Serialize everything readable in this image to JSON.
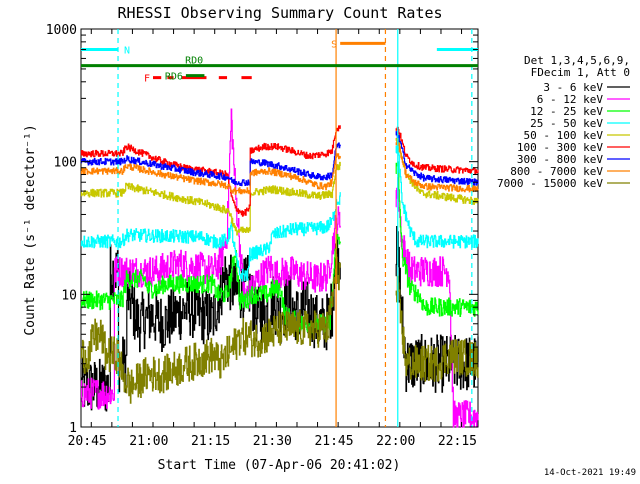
{
  "chart_data": {
    "type": "line",
    "title": "RHESSI Observing Summary Count Rates",
    "xlabel": "Start Time (07-Apr-06 20:41:02)",
    "ylabel": "Count Rate (s⁻¹ detector⁻¹)",
    "x_unit": "minutes after 20:41:02",
    "xlim": [
      2.5,
      99
    ],
    "ylim": [
      1,
      1000
    ],
    "yscale": "log",
    "x_tick_labels": [
      "20:45",
      "21:00",
      "21:15",
      "21:30",
      "21:45",
      "22:00",
      "22:15"
    ],
    "x_tick_positions": [
      4,
      19,
      34,
      49,
      64,
      79,
      94
    ],
    "y_tick_labels": [
      "1",
      "10",
      "100",
      "1000"
    ],
    "y_tick_values": [
      1,
      10,
      100,
      1000
    ],
    "legend_header": [
      "Det 1,3,4,5,6,9,",
      "FDecim 1, Att 0"
    ],
    "legend_position": "right",
    "timestamp": "14-Oct-2021 19:49",
    "intervals": [
      {
        "label": "N",
        "color": "#00ffff",
        "level": 700,
        "segments": [
          [
            2.5,
            11.5
          ],
          [
            89,
            99
          ]
        ]
      },
      {
        "label": "S",
        "color": "#ff8000",
        "level": 780,
        "segments": [
          [
            65.5,
            76.5
          ]
        ]
      },
      {
        "label": "F",
        "color": "#ff0000",
        "level": 430,
        "segments": [
          [
            20,
            22
          ],
          [
            23.5,
            25
          ],
          [
            27,
            33
          ],
          [
            36,
            38
          ],
          [
            41.5,
            44
          ]
        ]
      },
      {
        "label": "RD0",
        "color": "#008000",
        "level": 530,
        "segments": [
          [
            2.5,
            99
          ]
        ]
      },
      {
        "label": "RD6",
        "color": "#008000",
        "level": 445,
        "segments": [
          [
            28,
            32.5
          ]
        ]
      }
    ],
    "vlines": [
      {
        "x": 11.5,
        "color": "#00ffff",
        "style": "dashed"
      },
      {
        "x": 64.5,
        "color": "#ff8000",
        "style": "solid"
      },
      {
        "x": 76.5,
        "color": "#ff8000",
        "style": "dashed"
      },
      {
        "x": 79.5,
        "color": "#00ffff",
        "style": "solid"
      },
      {
        "x": 97.5,
        "color": "#00ffff",
        "style": "dashed"
      }
    ],
    "gaps": [
      [
        65.5,
        79
      ]
    ],
    "series": [
      {
        "name": "3 - 6 keV",
        "color": "#000000",
        "noise": 0.22,
        "points": [
          [
            2.5,
            2.0
          ],
          [
            9.5,
            2.0
          ],
          [
            9.6,
            15
          ],
          [
            11.5,
            15
          ],
          [
            11.6,
            3.0
          ],
          [
            13.5,
            3.0
          ],
          [
            13.6,
            10
          ],
          [
            14.5,
            9
          ],
          [
            15.5,
            7
          ],
          [
            16.5,
            6
          ],
          [
            19.5,
            7
          ],
          [
            22.5,
            6
          ],
          [
            25.5,
            7
          ],
          [
            28.5,
            8
          ],
          [
            31.5,
            7
          ],
          [
            34.5,
            6.5
          ],
          [
            37.5,
            14
          ],
          [
            40.5,
            10
          ],
          [
            43,
            12
          ],
          [
            45,
            7
          ],
          [
            47,
            7
          ],
          [
            49,
            9
          ],
          [
            51,
            7
          ],
          [
            53,
            9
          ],
          [
            55,
            7
          ],
          [
            57,
            8
          ],
          [
            60,
            6
          ],
          [
            62,
            6
          ],
          [
            63.5,
            8
          ],
          [
            64.5,
            20
          ],
          [
            79.5,
            20
          ],
          [
            80.5,
            7
          ],
          [
            81.5,
            3
          ],
          [
            82.5,
            3
          ],
          [
            99,
            3
          ]
        ]
      },
      {
        "name": "6 - 12 keV",
        "color": "#ff00ff",
        "noise": 0.12,
        "points": [
          [
            2.5,
            1.8
          ],
          [
            10.5,
            1.8
          ],
          [
            10.6,
            15
          ],
          [
            13.5,
            15
          ],
          [
            13.6,
            15
          ],
          [
            20.5,
            15
          ],
          [
            23.5,
            16
          ],
          [
            26.5,
            17
          ],
          [
            30.5,
            16
          ],
          [
            34.5,
            15
          ],
          [
            36.5,
            18
          ],
          [
            38,
            30
          ],
          [
            39,
            220
          ],
          [
            40,
            60
          ],
          [
            41,
            25
          ],
          [
            42,
            10
          ],
          [
            43.5,
            10
          ],
          [
            44.5,
            12
          ],
          [
            48.5,
            16
          ],
          [
            50,
            14
          ],
          [
            53,
            15
          ],
          [
            56,
            14
          ],
          [
            60,
            13
          ],
          [
            62.5,
            14
          ],
          [
            64.5,
            35
          ],
          [
            79.5,
            60
          ],
          [
            80.5,
            25
          ],
          [
            82.5,
            15
          ],
          [
            83.5,
            15
          ],
          [
            92,
            15
          ],
          [
            93,
            1.2
          ],
          [
            99,
            1.2
          ]
        ]
      },
      {
        "name": "12 - 25 keV",
        "color": "#00ff00",
        "noise": 0.07,
        "points": [
          [
            2.5,
            9
          ],
          [
            12.5,
            9
          ],
          [
            13.5,
            13
          ],
          [
            18,
            13
          ],
          [
            18.5,
            11
          ],
          [
            21.5,
            11
          ],
          [
            22.5,
            12
          ],
          [
            34.5,
            12
          ],
          [
            35.5,
            10
          ],
          [
            38,
            10
          ],
          [
            39,
            14
          ],
          [
            40,
            22
          ],
          [
            41,
            9
          ],
          [
            43,
            9
          ],
          [
            43.5,
            10
          ],
          [
            48,
            10
          ],
          [
            49,
            11
          ],
          [
            51,
            11
          ],
          [
            52,
            7
          ],
          [
            56,
            6
          ],
          [
            63,
            6
          ],
          [
            64.5,
            25
          ],
          [
            79.5,
            90
          ],
          [
            80.5,
            20
          ],
          [
            82.5,
            11
          ],
          [
            84.5,
            10
          ],
          [
            86,
            8
          ],
          [
            99,
            8
          ]
        ]
      },
      {
        "name": "25 - 50 keV",
        "color": "#00ffff",
        "noise": 0.05,
        "points": [
          [
            2.5,
            25
          ],
          [
            12.5,
            25
          ],
          [
            13.5,
            28
          ],
          [
            32,
            27
          ],
          [
            34.5,
            25
          ],
          [
            36.5,
            25
          ],
          [
            38,
            26
          ],
          [
            39,
            32
          ],
          [
            40,
            20
          ],
          [
            41,
            14
          ],
          [
            43,
            14
          ],
          [
            43.5,
            20
          ],
          [
            48,
            22
          ],
          [
            49,
            28
          ],
          [
            54,
            31
          ],
          [
            58,
            31
          ],
          [
            62,
            32
          ],
          [
            63.5,
            35
          ],
          [
            64.5,
            50
          ],
          [
            79.5,
            130
          ],
          [
            80.5,
            50
          ],
          [
            82.5,
            30
          ],
          [
            84,
            25
          ],
          [
            99,
            25
          ]
        ]
      },
      {
        "name": "50 - 100 keV",
        "color": "#c8c800",
        "noise": 0.03,
        "points": [
          [
            2.5,
            58
          ],
          [
            12.5,
            58
          ],
          [
            13.5,
            65
          ],
          [
            33,
            48
          ],
          [
            36,
            45
          ],
          [
            38.5,
            42
          ],
          [
            39,
            38
          ],
          [
            40,
            30
          ],
          [
            42,
            30
          ],
          [
            43.5,
            30
          ],
          [
            43.6,
            58
          ],
          [
            49,
            62
          ],
          [
            55,
            58
          ],
          [
            60,
            55
          ],
          [
            63.5,
            57
          ],
          [
            64.5,
            90
          ],
          [
            79.5,
            150
          ],
          [
            81.5,
            80
          ],
          [
            85,
            58
          ],
          [
            99,
            50
          ]
        ]
      },
      {
        "name": "100 - 300 keV",
        "color": "#ff0000",
        "noise": 0.025,
        "points": [
          [
            2.5,
            115
          ],
          [
            12.5,
            115
          ],
          [
            13.5,
            130
          ],
          [
            17.5,
            115
          ],
          [
            22.5,
            100
          ],
          [
            27.5,
            90
          ],
          [
            33,
            85
          ],
          [
            38,
            80
          ],
          [
            39,
            55
          ],
          [
            40,
            45
          ],
          [
            42,
            40
          ],
          [
            43.5,
            45
          ],
          [
            43.6,
            120
          ],
          [
            47,
            130
          ],
          [
            50,
            130
          ],
          [
            54,
            120
          ],
          [
            58,
            110
          ],
          [
            62,
            115
          ],
          [
            63.5,
            120
          ],
          [
            64.5,
            180
          ],
          [
            79.5,
            180
          ],
          [
            81.5,
            110
          ],
          [
            83.5,
            95
          ],
          [
            86,
            90
          ],
          [
            99,
            85
          ]
        ]
      },
      {
        "name": "300 - 800 keV",
        "color": "#0000ff",
        "noise": 0.025,
        "points": [
          [
            2.5,
            100
          ],
          [
            12.5,
            100
          ],
          [
            13.5,
            105
          ],
          [
            22.5,
            92
          ],
          [
            30,
            83
          ],
          [
            36,
            78
          ],
          [
            38.5,
            76
          ],
          [
            39,
            72
          ],
          [
            40,
            70
          ],
          [
            42,
            70
          ],
          [
            43.5,
            70
          ],
          [
            43.6,
            100
          ],
          [
            47,
            98
          ],
          [
            51,
            92
          ],
          [
            55,
            85
          ],
          [
            59,
            78
          ],
          [
            62,
            76
          ],
          [
            63.5,
            80
          ],
          [
            64.5,
            130
          ],
          [
            79.5,
            160
          ],
          [
            81.5,
            95
          ],
          [
            83.5,
            82
          ],
          [
            86,
            75
          ],
          [
            99,
            70
          ]
        ]
      },
      {
        "name": "800 - 7000 keV",
        "color": "#ff8000",
        "noise": 0.025,
        "points": [
          [
            2.5,
            85
          ],
          [
            12.5,
            85
          ],
          [
            13.5,
            93
          ],
          [
            22.5,
            80
          ],
          [
            30,
            72
          ],
          [
            36,
            68
          ],
          [
            38.5,
            65
          ],
          [
            39,
            62
          ],
          [
            40,
            60
          ],
          [
            42,
            60
          ],
          [
            43.5,
            60
          ],
          [
            43.6,
            82
          ],
          [
            48,
            85
          ],
          [
            52,
            80
          ],
          [
            56,
            74
          ],
          [
            60,
            66
          ],
          [
            62,
            65
          ],
          [
            63.5,
            70
          ],
          [
            64.5,
            110
          ],
          [
            79.5,
            140
          ],
          [
            81.5,
            80
          ],
          [
            83.5,
            70
          ],
          [
            86,
            65
          ],
          [
            99,
            62
          ]
        ]
      },
      {
        "name": "7000 - 15000 keV",
        "color": "#808000",
        "noise": 0.14,
        "points": [
          [
            2.5,
            3.5
          ],
          [
            4.5,
            3.5
          ],
          [
            5.5,
            4.8
          ],
          [
            7.5,
            4.8
          ],
          [
            8.5,
            3.5
          ],
          [
            11.5,
            3.5
          ],
          [
            12.5,
            2.5
          ],
          [
            14.5,
            2.0
          ],
          [
            18.5,
            2.5
          ],
          [
            22.5,
            2.5
          ],
          [
            28.5,
            3
          ],
          [
            34.5,
            3.5
          ],
          [
            36.5,
            3
          ],
          [
            38,
            3.5
          ],
          [
            39,
            3.8
          ],
          [
            40,
            4.2
          ],
          [
            41,
            4.8
          ],
          [
            43.5,
            4.8
          ],
          [
            44.5,
            4.5
          ],
          [
            48.5,
            5
          ],
          [
            51,
            5.5
          ],
          [
            55,
            5.5
          ],
          [
            58,
            5.5
          ],
          [
            62.5,
            5.5
          ],
          [
            64.5,
            15
          ],
          [
            79.5,
            10
          ],
          [
            81.5,
            3
          ],
          [
            89,
            3
          ],
          [
            92,
            3.5
          ],
          [
            99,
            3.2
          ]
        ]
      }
    ]
  }
}
